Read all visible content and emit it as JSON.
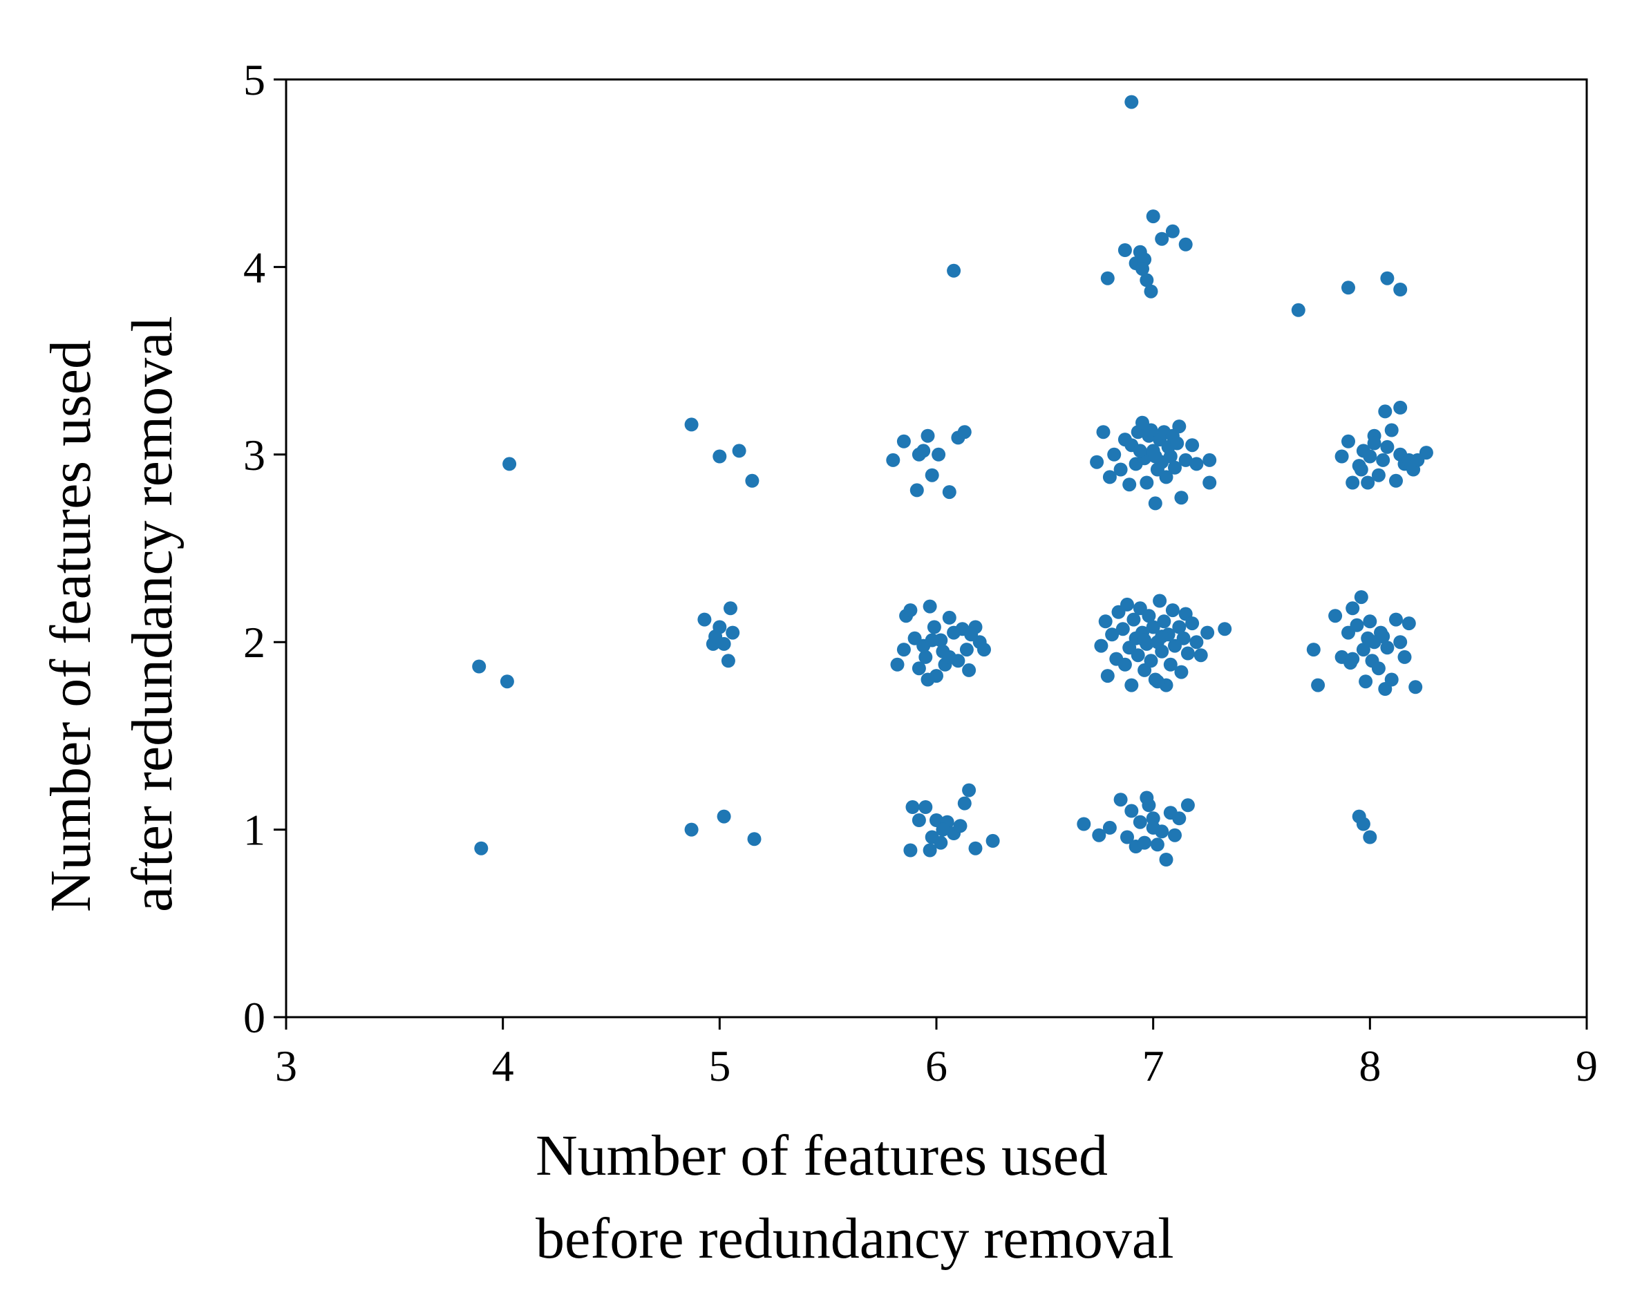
{
  "chart_data": {
    "type": "scatter",
    "title": "",
    "xlabel_lines": [
      "Number of features used",
      "before redundancy removal"
    ],
    "ylabel_lines": [
      "Number of features used",
      "after redundancy removal"
    ],
    "xlim": [
      3,
      9
    ],
    "ylim": [
      0,
      5
    ],
    "xticks": [
      3,
      4,
      5,
      6,
      7,
      8,
      9
    ],
    "yticks": [
      0,
      1,
      2,
      3,
      4,
      5
    ],
    "grid": false,
    "legend": "none",
    "colors": {
      "points": "#1f77b4",
      "axes": "#000000"
    },
    "series": [
      {
        "points": [
          [
            3.89,
            1.87
          ],
          [
            4.02,
            1.79
          ],
          [
            4.03,
            2.95
          ],
          [
            3.9,
            0.9
          ],
          [
            4.87,
            3.16
          ],
          [
            5.0,
            2.99
          ],
          [
            5.09,
            3.02
          ],
          [
            5.15,
            2.86
          ],
          [
            4.93,
            2.12
          ],
          [
            4.97,
            1.99
          ],
          [
            5.0,
            2.08
          ],
          [
            5.04,
            1.9
          ],
          [
            5.05,
            2.18
          ],
          [
            5.06,
            2.05
          ],
          [
            5.02,
            1.99
          ],
          [
            4.98,
            2.03
          ],
          [
            4.87,
            1.0
          ],
          [
            5.02,
            1.07
          ],
          [
            5.16,
            0.95
          ],
          [
            6.08,
            3.98
          ],
          [
            5.8,
            2.97
          ],
          [
            5.85,
            3.07
          ],
          [
            5.92,
            3.0
          ],
          [
            5.96,
            3.1
          ],
          [
            6.01,
            3.0
          ],
          [
            6.06,
            2.8
          ],
          [
            6.1,
            3.09
          ],
          [
            6.13,
            3.12
          ],
          [
            5.91,
            2.81
          ],
          [
            5.98,
            2.89
          ],
          [
            5.94,
            3.02
          ],
          [
            5.82,
            1.88
          ],
          [
            5.85,
            1.96
          ],
          [
            5.86,
            2.14
          ],
          [
            5.9,
            2.02
          ],
          [
            5.92,
            1.86
          ],
          [
            5.95,
            1.92
          ],
          [
            5.97,
            2.19
          ],
          [
            5.99,
            2.08
          ],
          [
            6.0,
            1.82
          ],
          [
            6.02,
            2.01
          ],
          [
            6.04,
            1.88
          ],
          [
            6.06,
            2.13
          ],
          [
            5.94,
            1.98
          ],
          [
            6.1,
            1.9
          ],
          [
            6.12,
            2.07
          ],
          [
            6.14,
            1.96
          ],
          [
            6.15,
            1.85
          ],
          [
            6.18,
            2.08
          ],
          [
            6.2,
            2.0
          ],
          [
            6.22,
            1.96
          ],
          [
            6.08,
            2.05
          ],
          [
            5.88,
            2.17
          ],
          [
            6.03,
            1.95
          ],
          [
            5.96,
            1.8
          ],
          [
            6.06,
            1.92
          ],
          [
            6.16,
            2.04
          ],
          [
            5.98,
            2.01
          ],
          [
            5.89,
            1.12
          ],
          [
            5.92,
            1.05
          ],
          [
            5.95,
            1.12
          ],
          [
            5.98,
            0.96
          ],
          [
            6.0,
            1.05
          ],
          [
            6.02,
            0.93
          ],
          [
            6.05,
            1.04
          ],
          [
            6.08,
            0.98
          ],
          [
            6.11,
            1.02
          ],
          [
            6.13,
            1.14
          ],
          [
            6.15,
            1.21
          ],
          [
            6.18,
            0.9
          ],
          [
            6.26,
            0.94
          ],
          [
            5.88,
            0.89
          ],
          [
            5.97,
            0.89
          ],
          [
            6.03,
            1.0
          ],
          [
            6.9,
            4.88
          ],
          [
            6.79,
            3.94
          ],
          [
            6.87,
            4.09
          ],
          [
            6.92,
            4.02
          ],
          [
            6.94,
            4.08
          ],
          [
            6.96,
            4.04
          ],
          [
            6.97,
            3.93
          ],
          [
            6.99,
            3.87
          ],
          [
            7.0,
            4.27
          ],
          [
            7.04,
            4.15
          ],
          [
            7.09,
            4.19
          ],
          [
            7.15,
            4.12
          ],
          [
            6.95,
            3.99
          ],
          [
            6.74,
            2.96
          ],
          [
            6.77,
            3.12
          ],
          [
            6.8,
            2.88
          ],
          [
            6.82,
            3.0
          ],
          [
            6.85,
            2.92
          ],
          [
            6.87,
            3.08
          ],
          [
            6.89,
            2.84
          ],
          [
            6.9,
            3.05
          ],
          [
            6.92,
            2.95
          ],
          [
            6.93,
            3.12
          ],
          [
            6.95,
            3.17
          ],
          [
            6.96,
            2.98
          ],
          [
            6.97,
            2.85
          ],
          [
            6.98,
            3.1
          ],
          [
            7.0,
            3.02
          ],
          [
            7.01,
            2.74
          ],
          [
            7.02,
            2.92
          ],
          [
            7.03,
            3.08
          ],
          [
            7.04,
            2.96
          ],
          [
            7.05,
            3.12
          ],
          [
            7.06,
            2.88
          ],
          [
            7.07,
            3.04
          ],
          [
            7.08,
            2.99
          ],
          [
            7.09,
            3.1
          ],
          [
            7.1,
            2.93
          ],
          [
            7.11,
            3.06
          ],
          [
            7.12,
            3.15
          ],
          [
            7.13,
            2.77
          ],
          [
            7.15,
            2.97
          ],
          [
            7.18,
            3.05
          ],
          [
            7.2,
            2.95
          ],
          [
            7.26,
            2.97
          ],
          [
            7.26,
            2.85
          ],
          [
            6.99,
            3.13
          ],
          [
            6.94,
            3.02
          ],
          [
            7.01,
            2.99
          ],
          [
            6.76,
            1.98
          ],
          [
            6.78,
            2.11
          ],
          [
            6.79,
            1.82
          ],
          [
            6.81,
            2.04
          ],
          [
            6.83,
            1.91
          ],
          [
            6.84,
            2.16
          ],
          [
            6.86,
            2.07
          ],
          [
            6.87,
            1.88
          ],
          [
            6.88,
            2.2
          ],
          [
            6.89,
            1.97
          ],
          [
            6.9,
            1.77
          ],
          [
            6.91,
            2.12
          ],
          [
            6.92,
            2.02
          ],
          [
            6.93,
            1.93
          ],
          [
            6.94,
            2.18
          ],
          [
            6.95,
            2.05
          ],
          [
            6.96,
            1.85
          ],
          [
            6.97,
            1.99
          ],
          [
            6.98,
            2.14
          ],
          [
            6.99,
            1.9
          ],
          [
            7.0,
            2.08
          ],
          [
            7.01,
            1.8
          ],
          [
            7.02,
            2.0
          ],
          [
            7.03,
            2.22
          ],
          [
            7.04,
            1.95
          ],
          [
            7.05,
            2.11
          ],
          [
            7.06,
            1.77
          ],
          [
            7.07,
            2.04
          ],
          [
            7.08,
            1.88
          ],
          [
            7.09,
            2.17
          ],
          [
            7.1,
            1.98
          ],
          [
            7.12,
            2.08
          ],
          [
            7.13,
            1.84
          ],
          [
            7.14,
            2.02
          ],
          [
            7.15,
            2.15
          ],
          [
            7.16,
            1.94
          ],
          [
            7.18,
            2.1
          ],
          [
            7.2,
            2.0
          ],
          [
            7.22,
            1.93
          ],
          [
            7.25,
            2.05
          ],
          [
            7.33,
            2.07
          ],
          [
            7.02,
            1.79
          ],
          [
            6.96,
            2.01
          ],
          [
            7.04,
            2.03
          ],
          [
            6.68,
            1.03
          ],
          [
            6.75,
            0.97
          ],
          [
            6.8,
            1.01
          ],
          [
            6.85,
            1.16
          ],
          [
            6.88,
            0.96
          ],
          [
            6.9,
            1.1
          ],
          [
            6.92,
            0.91
          ],
          [
            6.94,
            1.04
          ],
          [
            6.96,
            0.93
          ],
          [
            6.98,
            1.13
          ],
          [
            7.0,
            1.06
          ],
          [
            7.02,
            0.92
          ],
          [
            7.04,
            0.99
          ],
          [
            7.06,
            0.84
          ],
          [
            7.08,
            1.09
          ],
          [
            7.1,
            0.97
          ],
          [
            7.12,
            1.06
          ],
          [
            7.16,
            1.13
          ],
          [
            6.97,
            1.17
          ],
          [
            7.0,
            1.01
          ],
          [
            7.67,
            3.77
          ],
          [
            7.9,
            3.89
          ],
          [
            8.08,
            3.94
          ],
          [
            8.14,
            3.88
          ],
          [
            7.87,
            2.99
          ],
          [
            7.9,
            3.07
          ],
          [
            7.92,
            2.85
          ],
          [
            7.95,
            2.94
          ],
          [
            7.97,
            3.02
          ],
          [
            7.99,
            2.85
          ],
          [
            8.0,
            2.99
          ],
          [
            8.02,
            3.1
          ],
          [
            8.04,
            2.89
          ],
          [
            8.06,
            2.97
          ],
          [
            8.08,
            3.04
          ],
          [
            8.1,
            3.13
          ],
          [
            8.12,
            2.86
          ],
          [
            8.14,
            3.0
          ],
          [
            8.16,
            2.95
          ],
          [
            8.18,
            2.97
          ],
          [
            8.2,
            2.92
          ],
          [
            8.22,
            2.97
          ],
          [
            8.26,
            3.01
          ],
          [
            8.14,
            3.25
          ],
          [
            8.07,
            3.23
          ],
          [
            7.96,
            2.92
          ],
          [
            8.02,
            3.06
          ],
          [
            7.74,
            1.96
          ],
          [
            7.76,
            1.77
          ],
          [
            7.84,
            2.14
          ],
          [
            7.87,
            1.92
          ],
          [
            7.9,
            2.05
          ],
          [
            7.91,
            1.89
          ],
          [
            7.92,
            2.18
          ],
          [
            7.94,
            2.09
          ],
          [
            7.96,
            2.24
          ],
          [
            7.97,
            1.96
          ],
          [
            7.98,
            1.79
          ],
          [
            7.99,
            2.02
          ],
          [
            8.0,
            2.11
          ],
          [
            8.01,
            1.9
          ],
          [
            8.02,
            2.0
          ],
          [
            8.04,
            1.86
          ],
          [
            8.05,
            2.05
          ],
          [
            8.07,
            1.75
          ],
          [
            8.08,
            1.97
          ],
          [
            8.1,
            1.8
          ],
          [
            8.12,
            2.12
          ],
          [
            8.14,
            2.0
          ],
          [
            8.16,
            1.92
          ],
          [
            8.18,
            2.1
          ],
          [
            8.21,
            1.76
          ],
          [
            7.92,
            1.91
          ],
          [
            8.06,
            2.03
          ],
          [
            7.95,
            1.07
          ],
          [
            7.97,
            1.03
          ],
          [
            8.0,
            0.96
          ]
        ]
      }
    ]
  }
}
